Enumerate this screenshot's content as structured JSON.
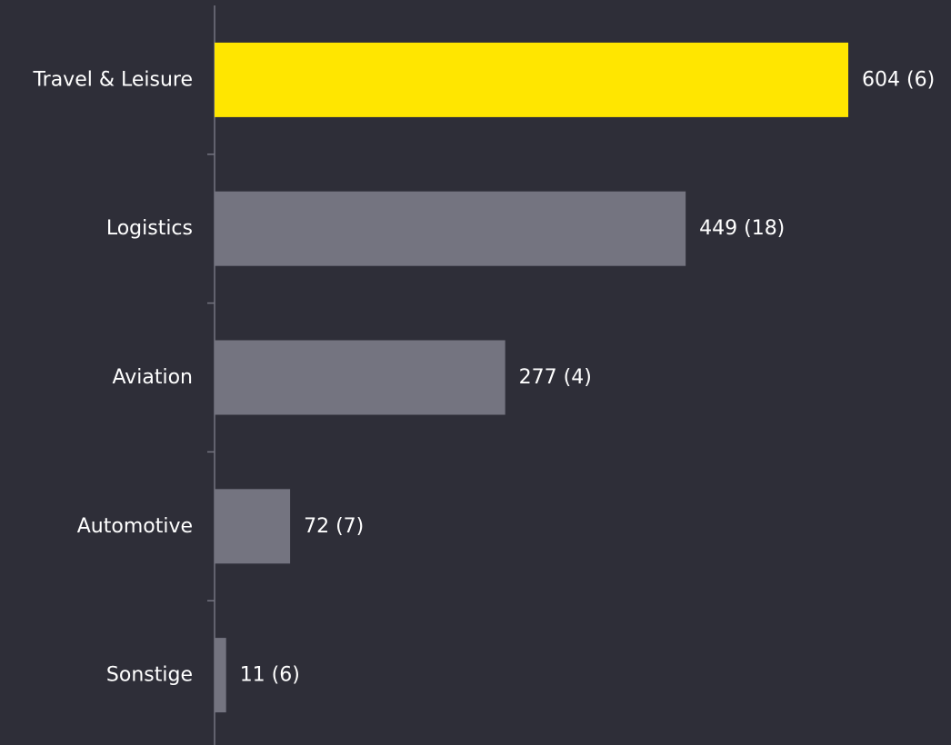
{
  "chart_data": {
    "type": "bar",
    "orientation": "horizontal",
    "categories": [
      "Travel & Leisure",
      "Logistics",
      "Aviation",
      "Automotive",
      "Sonstige"
    ],
    "values": [
      604,
      449,
      277,
      72,
      11
    ],
    "value_labels": [
      "604 (6)",
      "449 (18)",
      "277 (4)",
      "72 (7)",
      "11 (6)"
    ],
    "highlight_index": 0,
    "xlim": [
      0,
      604
    ],
    "grid": false,
    "legend": "none",
    "title": "",
    "xlabel": "",
    "ylabel": ""
  },
  "colors": {
    "background": "#2e2e38",
    "highlight_bar": "#ffe600",
    "bar": "#747480",
    "axis": "#747480",
    "text": "#ffffff"
  }
}
